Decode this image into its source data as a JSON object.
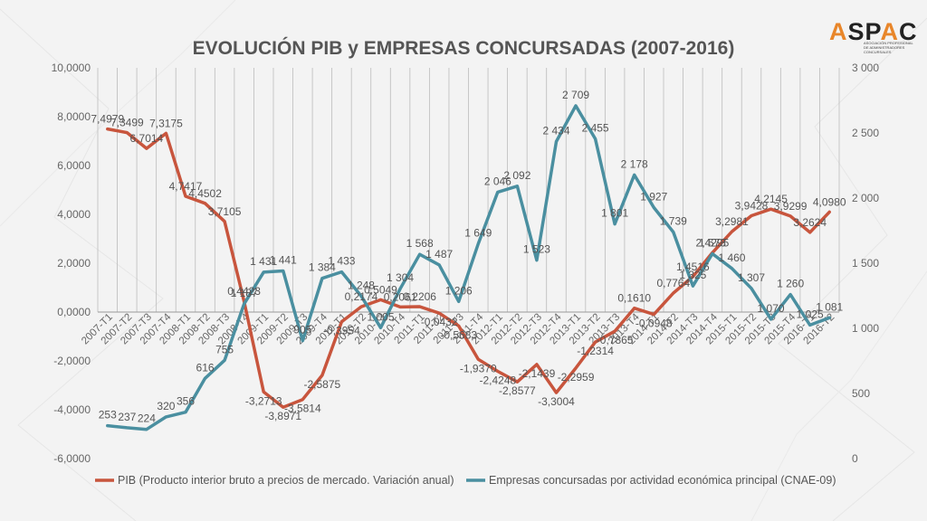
{
  "logo": {
    "text_a": "A",
    "text_b": "SP",
    "text_c": "A",
    "text_d": "C",
    "subtitle": "ASOCIACIÓN PROFESIONAL DE ADMINISTRADORES CONCURSALES"
  },
  "chart_data": {
    "type": "line",
    "title": "EVOLUCIÓN PIB y EMPRESAS CONCURSADAS (2007-2016)",
    "categories": [
      "2007-T1",
      "2007-T2",
      "2007-T3",
      "2007-T4",
      "2008-T1",
      "2008-T2",
      "2008-T3",
      "2008-T4",
      "2009-T1",
      "2009-T2",
      "2009-T3",
      "2009-T4",
      "2010-T1",
      "2010-T2",
      "2010-T3",
      "2010-T4",
      "2011-T1",
      "2011-T2",
      "2011-T3",
      "2011-T4",
      "2012-T1",
      "2012-T2",
      "2012-T3",
      "2012-T4",
      "2013-T1",
      "2013-T2",
      "2013-T3",
      "2013-T4",
      "2014-T1",
      "2014-T2",
      "2014-T3",
      "2014-T4",
      "2015-T1",
      "2015-T2",
      "2015-T3",
      "2015-T4",
      "2016-T1",
      "2016-T2"
    ],
    "left_axis": {
      "min": -6,
      "max": 10,
      "ticks": [
        "10,0000",
        "8,0000",
        "6,0000",
        "4,0000",
        "2,0000",
        "0,0000",
        "-2,0000",
        "-4,0000",
        "-6,0000"
      ]
    },
    "right_axis": {
      "min": 0,
      "max": 3000,
      "ticks": [
        "3 000",
        "2 500",
        "2 000",
        "1 500",
        "1 000",
        "500",
        "0"
      ]
    },
    "grid": "vertical category lines",
    "legend_position": "bottom",
    "series": [
      {
        "name": "PIB (Producto interior bruto a precios de mercado. Variación anual)",
        "axis": "left",
        "color": "#c8553d",
        "values": [
          7.4979,
          7.3499,
          6.7014,
          7.3175,
          4.7417,
          4.4502,
          3.7105,
          0.4423,
          -3.2713,
          -3.8971,
          -3.5814,
          -2.5875,
          -0.3954,
          0.2174,
          0.5049,
          0.2061,
          0.2206,
          -0.0432,
          -0.5683,
          -1.937,
          -2.4248,
          -2.8577,
          -2.1439,
          -3.3004,
          -2.2959,
          -1.2314,
          -0.7865,
          0.161,
          -0.0948,
          0.7764,
          1.4516,
          2.4295,
          3.2981,
          3.9428,
          4.2145,
          3.9299,
          3.2624,
          4.098
        ],
        "labels": [
          "7,4979",
          "7,3499",
          "6,7014",
          "7,3175",
          "4,7417",
          "4,4502",
          "3,7105",
          "0,4423",
          "-3,2713",
          "-3,8971",
          "-3,5814",
          "-2,5875",
          "-0,3954",
          "0,2174",
          "0,5049",
          "0,2061",
          "0,2206",
          "-0,0432",
          "-0,5683",
          "-1,9370",
          "-2,4248",
          "-2,8577",
          "-2,1439",
          "-3,3004",
          "-2,2959",
          "-1,2314",
          "-0,7865",
          "0,1610",
          "-0,0948",
          "0,7764",
          "1,4516",
          "2,4295",
          "3,2981",
          "3,9428",
          "4,2145",
          "3,9299",
          "3,2624",
          "4,0980"
        ]
      },
      {
        "name": "Empresas concursadas por actividad económica principal (CNAE-09)",
        "axis": "right",
        "color": "#4a8fa0",
        "values": [
          253,
          237,
          224,
          320,
          356,
          616,
          755,
          1187,
          1431,
          1441,
          905,
          1384,
          1433,
          1248,
          1005,
          1304,
          1568,
          1487,
          1206,
          1649,
          2046,
          2092,
          1523,
          2434,
          2709,
          2455,
          1801,
          2178,
          1927,
          1739,
          1325,
          1573,
          1460,
          1307,
          1070,
          1260,
          1025,
          1081
        ],
        "labels": [
          "253",
          "237",
          "224",
          "320",
          "356",
          "616",
          "755",
          "1 187",
          "1 431",
          "1 441",
          "905",
          "1 384",
          "1 433",
          "1 248",
          "1 005",
          "1 304",
          "1 568",
          "1 487",
          "1 206",
          "1 649",
          "2 046",
          "2 092",
          "1 523",
          "2 434",
          "2 709",
          "2 455",
          "1 801",
          "2 178",
          "1 927",
          "1 739",
          "1 325",
          "1 573",
          "1 460",
          "1 307",
          "1 070",
          "1 260",
          "1 025",
          "1 081"
        ]
      }
    ]
  }
}
